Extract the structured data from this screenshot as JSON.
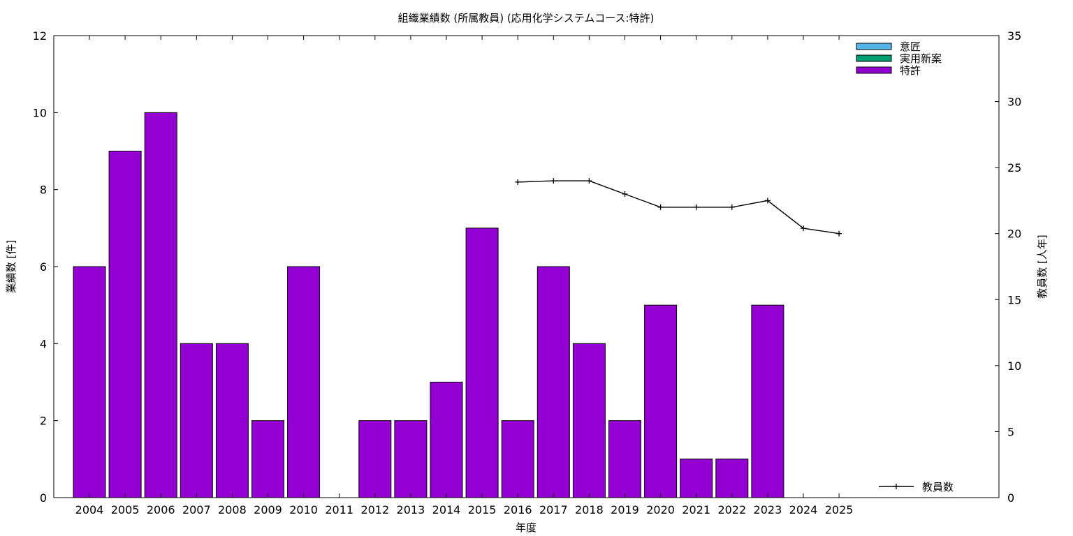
{
  "chart_data": {
    "type": "bar",
    "title": "組織業績数 (所属教員) (応用化学システムコース:特許)",
    "xlabel": "年度",
    "ylabel": "業績数 [件]",
    "y2label": "教員数 [人年]",
    "ylim": [
      0,
      12
    ],
    "y2lim": [
      0,
      35
    ],
    "yticks": [
      "0",
      "2",
      "4",
      "6",
      "8",
      "10",
      "12"
    ],
    "y2ticks": [
      "0",
      "5",
      "10",
      "15",
      "20",
      "25",
      "30",
      "35"
    ],
    "categories": [
      "2004",
      "2005",
      "2006",
      "2007",
      "2008",
      "2009",
      "2010",
      "2011",
      "2012",
      "2013",
      "2014",
      "2015",
      "2016",
      "2017",
      "2018",
      "2019",
      "2020",
      "2021",
      "2022",
      "2023",
      "2024",
      "2025"
    ],
    "stacked": true,
    "grid": false,
    "legend_position": "top-right",
    "series": [
      {
        "name": "意匠",
        "color": "#56b4e9",
        "values": [
          0,
          0,
          0,
          0,
          0,
          0,
          0,
          0,
          0,
          0,
          0,
          0,
          0,
          0,
          0,
          0,
          0,
          0,
          0,
          0,
          0,
          0
        ]
      },
      {
        "name": "実用新案",
        "color": "#009e73",
        "values": [
          0,
          0,
          0,
          0,
          0,
          0,
          0,
          0,
          0,
          0,
          0,
          0,
          0,
          0,
          0,
          0,
          0,
          0,
          0,
          0,
          0,
          0
        ]
      },
      {
        "name": "特許",
        "color": "#9400d3",
        "values": [
          6,
          9,
          10,
          4,
          4,
          2,
          6,
          0,
          2,
          2,
          3,
          7,
          2,
          6,
          4,
          2,
          5,
          1,
          1,
          5,
          0,
          0
        ]
      }
    ],
    "line_series": {
      "name": "教員数",
      "color": "#000000",
      "axis": "y2",
      "values": [
        null,
        null,
        null,
        null,
        null,
        null,
        null,
        null,
        null,
        null,
        null,
        null,
        23.9,
        24,
        24,
        23,
        22,
        22,
        22,
        22.5,
        20.4,
        20
      ]
    }
  }
}
